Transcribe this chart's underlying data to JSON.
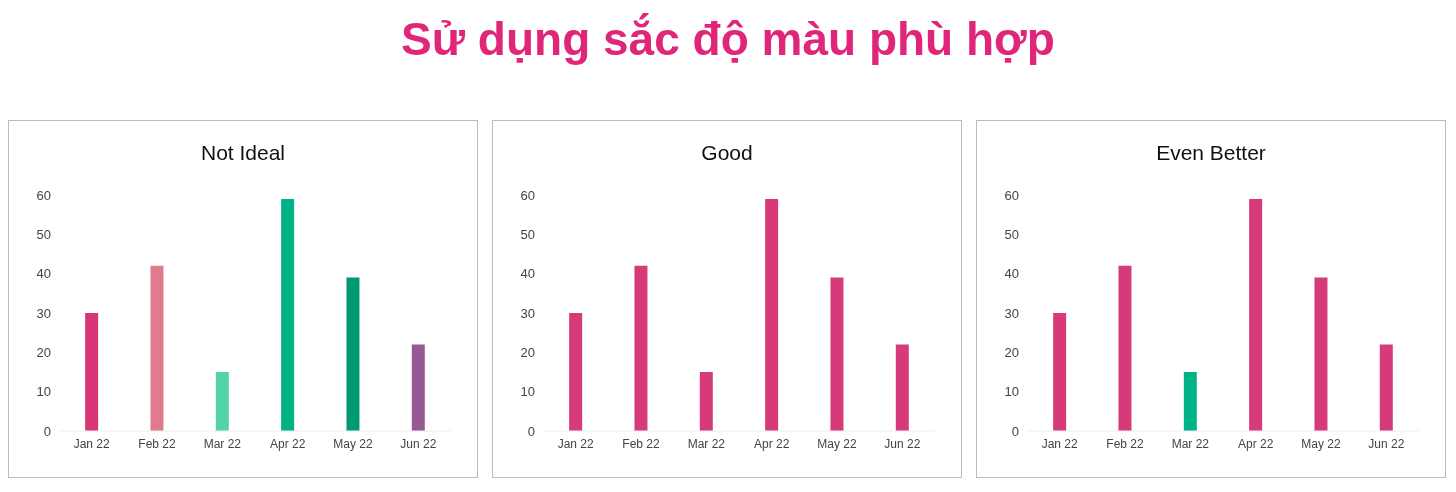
{
  "chart_data": [
    {
      "type": "other",
      "title": "Sử dụng sắc độ màu phù hợp",
      "color": "#e0267a"
    },
    {
      "type": "bar",
      "title": "Not Ideal",
      "categories": [
        "Jan 22",
        "Feb 22",
        "Mar 22",
        "Apr 22",
        "May 22",
        "Jun 22"
      ],
      "values": [
        30,
        42,
        15,
        59,
        39,
        22
      ],
      "colors": [
        "#d63576",
        "#e07a8c",
        "#52d3a8",
        "#00b386",
        "#009a70",
        "#955a96"
      ],
      "ylim": [
        0,
        60
      ],
      "yticks": [
        0,
        10,
        20,
        30,
        40,
        50,
        60
      ],
      "grid": false,
      "legend": false
    },
    {
      "type": "bar",
      "title": "Good",
      "categories": [
        "Jan 22",
        "Feb 22",
        "Mar 22",
        "Apr 22",
        "May 22",
        "Jun 22"
      ],
      "values": [
        30,
        42,
        15,
        59,
        39,
        22
      ],
      "colors": [
        "#d63a78",
        "#d63a78",
        "#d63a78",
        "#d63a78",
        "#d63a78",
        "#d63a78"
      ],
      "ylim": [
        0,
        60
      ],
      "yticks": [
        0,
        10,
        20,
        30,
        40,
        50,
        60
      ],
      "grid": false,
      "legend": false
    },
    {
      "type": "bar",
      "title": "Even Better",
      "categories": [
        "Jan 22",
        "Feb 22",
        "Mar 22",
        "Apr 22",
        "May 22",
        "Jun 22"
      ],
      "values": [
        30,
        42,
        15,
        59,
        39,
        22
      ],
      "colors": [
        "#d63a78",
        "#d63a78",
        "#00b386",
        "#d63a78",
        "#d63a78",
        "#d63a78"
      ],
      "ylim": [
        0,
        60
      ],
      "yticks": [
        0,
        10,
        20,
        30,
        40,
        50,
        60
      ],
      "grid": false,
      "legend": false
    }
  ]
}
